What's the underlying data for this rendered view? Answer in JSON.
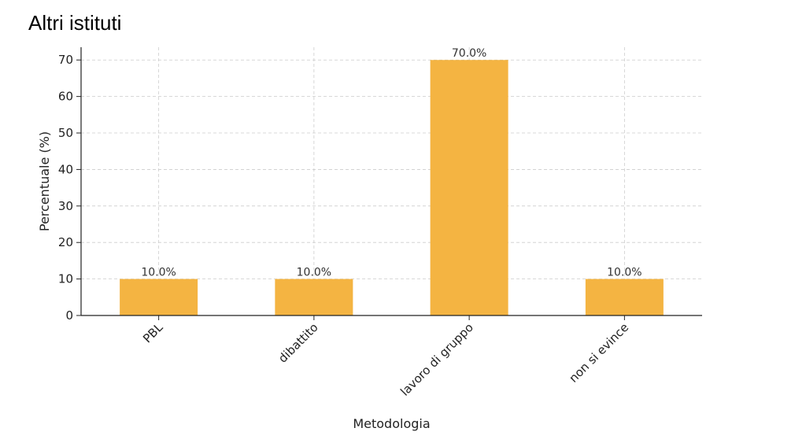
{
  "page": {
    "title": "Altri istituti"
  },
  "chart_data": {
    "type": "bar",
    "title": "",
    "categories": [
      "PBL",
      "dibattito",
      "lavoro di gruppo",
      "non si evince"
    ],
    "values": [
      10.0,
      10.0,
      70.0,
      10.0
    ],
    "data_labels": [
      "10.0%",
      "10.0%",
      "70.0%",
      "10.0%"
    ],
    "xlabel": "Metodologia",
    "ylabel": "Percentuale (%)",
    "ylim": [
      0,
      73.5
    ],
    "yticks": [
      0,
      10,
      20,
      30,
      40,
      50,
      60,
      70
    ],
    "grid": true,
    "legend": "none",
    "bar_color": "#f4b442",
    "grid_color": "#cccccc",
    "axis_color": "#222222"
  }
}
